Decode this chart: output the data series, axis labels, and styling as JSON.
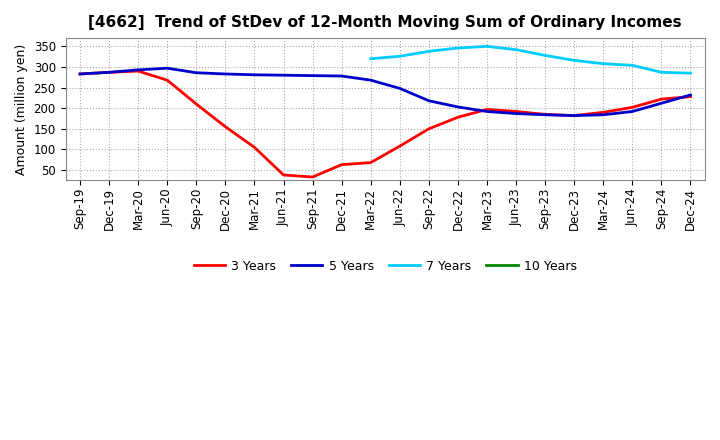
{
  "title": "[4662]  Trend of StDev of 12-Month Moving Sum of Ordinary Incomes",
  "ylabel": "Amount (million yen)",
  "xlabels": [
    "Sep-19",
    "Dec-19",
    "Mar-20",
    "Jun-20",
    "Sep-20",
    "Dec-20",
    "Mar-21",
    "Jun-21",
    "Sep-21",
    "Dec-21",
    "Mar-22",
    "Jun-22",
    "Sep-22",
    "Dec-22",
    "Mar-23",
    "Jun-23",
    "Sep-23",
    "Dec-23",
    "Mar-24",
    "Jun-24",
    "Sep-24",
    "Dec-24"
  ],
  "ylim": [
    25,
    370
  ],
  "yticks": [
    50,
    100,
    150,
    200,
    250,
    300,
    350
  ],
  "series": {
    "3 Years": {
      "color": "#ff0000",
      "linewidth": 2.0,
      "data_x": [
        0,
        1,
        2,
        3,
        4,
        5,
        6,
        7,
        8,
        9,
        10,
        11,
        12,
        13,
        14,
        15,
        16,
        17,
        18,
        19,
        20,
        21
      ],
      "data_y": [
        283,
        287,
        290,
        268,
        210,
        155,
        105,
        38,
        33,
        63,
        68,
        108,
        150,
        178,
        197,
        192,
        185,
        182,
        190,
        202,
        222,
        228
      ]
    },
    "5 Years": {
      "color": "#0000cc",
      "linewidth": 2.0,
      "data_x": [
        0,
        1,
        2,
        3,
        4,
        5,
        6,
        7,
        8,
        9,
        10,
        11,
        12,
        13,
        14,
        15,
        16,
        17,
        18,
        19,
        20,
        21
      ],
      "data_y": [
        283,
        287,
        293,
        297,
        286,
        283,
        281,
        280,
        279,
        278,
        268,
        248,
        218,
        203,
        192,
        187,
        184,
        182,
        184,
        192,
        212,
        232
      ]
    },
    "7 Years": {
      "color": "#00ccff",
      "linewidth": 2.0,
      "data_x": [
        10,
        11,
        12,
        13,
        14,
        15,
        16,
        17,
        18,
        19,
        20,
        21
      ],
      "data_y": [
        320,
        326,
        338,
        346,
        350,
        342,
        328,
        316,
        308,
        304,
        287,
        285
      ]
    },
    "10 Years": {
      "color": "#008800",
      "linewidth": 2.0,
      "data_x": [],
      "data_y": []
    }
  },
  "background_color": "#ffffff",
  "grid_color": "#aaaaaa",
  "title_fontsize": 11,
  "label_fontsize": 9,
  "tick_fontsize": 8.5,
  "legend_fontsize": 9
}
